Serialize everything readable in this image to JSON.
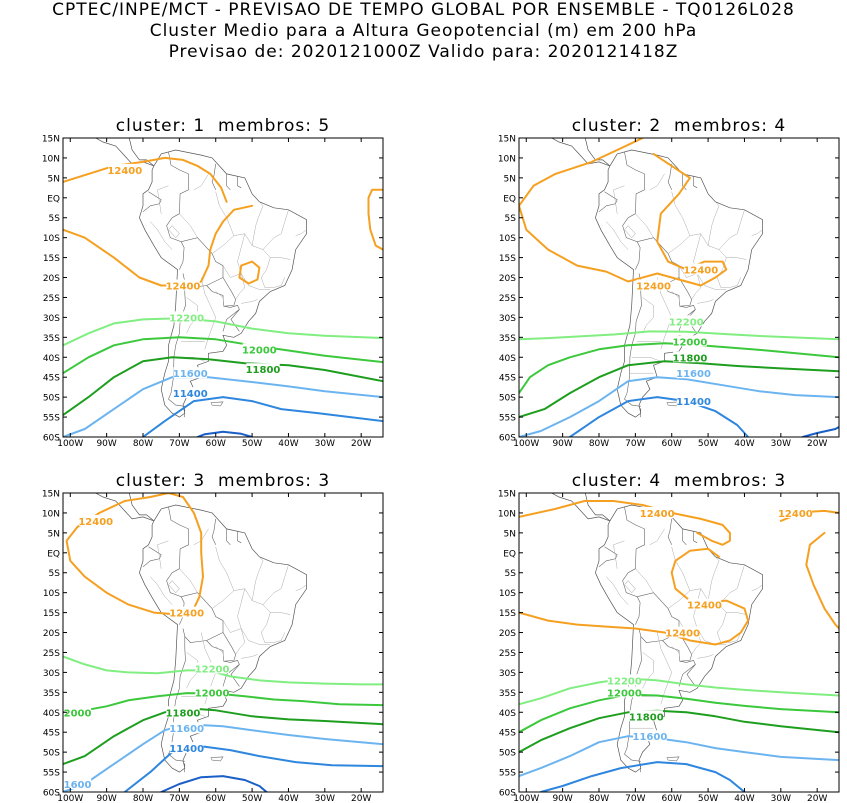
{
  "header": {
    "line1": "CPTEC/INPE/MCT - PREVISAO DE TEMPO GLOBAL POR ENSEMBLE - TQ0126L028",
    "line2": "Cluster Medio para a Altura Geopotencial (m) em 200 hPa",
    "line3": "Previsao de: 2020121000Z   Valido para: 2020121418Z"
  },
  "lat_ticks": [
    "15N",
    "10N",
    "5N",
    "EQ",
    "5S",
    "10S",
    "15S",
    "20S",
    "25S",
    "30S",
    "35S",
    "40S",
    "45S",
    "50S",
    "55S",
    "60S"
  ],
  "lon_ticks": [
    "100W",
    "90W",
    "80W",
    "70W",
    "60W",
    "50W",
    "40W",
    "30W",
    "20W"
  ],
  "contour_colors": {
    "12400": "#f5a020",
    "12200": "#80ee80",
    "12000": "#3cc83c",
    "11800": "#1e9e1e",
    "11600": "#6cb4f0",
    "11400": "#2e86de",
    "11200": "#1a5ec8"
  },
  "panels": [
    {
      "title": "cluster: 1  membros: 5",
      "labels": [
        {
          "text": "12400",
          "lon": -85,
          "lat": 7,
          "color": "12400"
        },
        {
          "text": "12400",
          "lon": -69,
          "lat": -22,
          "color": "12400"
        },
        {
          "text": "12200",
          "lon": -68,
          "lat": -30,
          "color": "12200"
        },
        {
          "text": "12000",
          "lon": -48,
          "lat": -38,
          "color": "12000"
        },
        {
          "text": "11800",
          "lon": -47,
          "lat": -43,
          "color": "11800"
        },
        {
          "text": "11600",
          "lon": -67,
          "lat": -44,
          "color": "11600"
        },
        {
          "text": "11400",
          "lon": -67,
          "lat": -49,
          "color": "11400"
        }
      ]
    },
    {
      "title": "cluster: 2  membros: 4",
      "labels": [
        {
          "text": "12400",
          "lon": -52,
          "lat": -18,
          "color": "12400"
        },
        {
          "text": "12400",
          "lon": -65,
          "lat": -22,
          "color": "12400"
        },
        {
          "text": "12200",
          "lon": -56,
          "lat": -31,
          "color": "12200"
        },
        {
          "text": "12000",
          "lon": -55,
          "lat": -36,
          "color": "12000"
        },
        {
          "text": "11800",
          "lon": -55,
          "lat": -40,
          "color": "11800"
        },
        {
          "text": "11600",
          "lon": -54,
          "lat": -44,
          "color": "11600"
        },
        {
          "text": "11400",
          "lon": -54,
          "lat": -51,
          "color": "11400"
        }
      ]
    },
    {
      "title": "cluster: 3  membros: 3",
      "labels": [
        {
          "text": "12400",
          "lon": -93,
          "lat": 8,
          "color": "12400"
        },
        {
          "text": "12400",
          "lon": -68,
          "lat": -15,
          "color": "12400"
        },
        {
          "text": "12200",
          "lon": -61,
          "lat": -29,
          "color": "12200"
        },
        {
          "text": "12000",
          "lon": -61,
          "lat": -35,
          "color": "12000"
        },
        {
          "text": "2000",
          "lon": -98,
          "lat": -40,
          "color": "12000"
        },
        {
          "text": "11800",
          "lon": -69,
          "lat": -40,
          "color": "11800"
        },
        {
          "text": "11600",
          "lon": -68,
          "lat": -44,
          "color": "11600"
        },
        {
          "text": "11400",
          "lon": -68,
          "lat": -49,
          "color": "11400"
        },
        {
          "text": "1600",
          "lon": -98,
          "lat": -58,
          "color": "11600"
        }
      ]
    },
    {
      "title": "cluster: 4  membros: 3",
      "labels": [
        {
          "text": "12400",
          "lon": -64,
          "lat": 10,
          "color": "12400"
        },
        {
          "text": "12400",
          "lon": -26,
          "lat": 10,
          "color": "12400"
        },
        {
          "text": "12400",
          "lon": -51,
          "lat": -13,
          "color": "12400"
        },
        {
          "text": "12400",
          "lon": -57,
          "lat": -20,
          "color": "12400"
        },
        {
          "text": "12200",
          "lon": -73,
          "lat": -32,
          "color": "12200"
        },
        {
          "text": "12000",
          "lon": -73,
          "lat": -35,
          "color": "12000"
        },
        {
          "text": "11800",
          "lon": -67,
          "lat": -41,
          "color": "11800"
        },
        {
          "text": "11600",
          "lon": -66,
          "lat": -46,
          "color": "11600"
        }
      ]
    }
  ]
}
